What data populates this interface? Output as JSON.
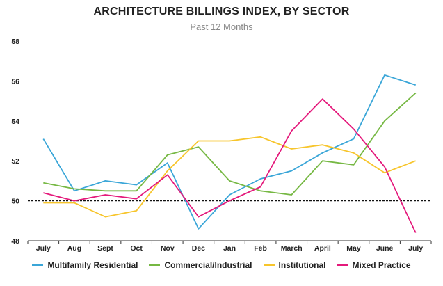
{
  "chart_data": {
    "type": "line",
    "title": "ARCHITECTURE BILLINGS INDEX, BY SECTOR",
    "subtitle": "Past 12 Months",
    "categories": [
      "July",
      "Aug",
      "Sept",
      "Oct",
      "Nov",
      "Dec",
      "Jan",
      "Feb",
      "March",
      "April",
      "May",
      "June",
      "July"
    ],
    "ylim": [
      48,
      58
    ],
    "yticks": [
      48,
      50,
      52,
      54,
      56,
      58
    ],
    "reference_line": 50,
    "grid": false,
    "legend_position": "bottom",
    "series": [
      {
        "name": "Multifamily Residential",
        "color": "#3aa6d8",
        "values": [
          53.1,
          50.5,
          51.0,
          50.8,
          51.9,
          48.6,
          50.3,
          51.1,
          51.5,
          52.4,
          53.1,
          56.3,
          55.8
        ]
      },
      {
        "name": "Commercial/Industrial",
        "color": "#76b843",
        "values": [
          50.9,
          50.6,
          50.5,
          50.5,
          52.3,
          52.7,
          51.0,
          50.5,
          50.3,
          52.0,
          51.8,
          54.0,
          55.4
        ]
      },
      {
        "name": "Institutional",
        "color": "#f7c52b",
        "values": [
          49.9,
          49.9,
          49.2,
          49.5,
          51.5,
          53.0,
          53.0,
          53.2,
          52.6,
          52.8,
          52.4,
          51.4,
          52.0
        ]
      },
      {
        "name": "Mixed Practice",
        "color": "#e4197b",
        "values": [
          50.4,
          50.0,
          50.3,
          50.1,
          51.3,
          49.2,
          50.0,
          50.7,
          53.5,
          55.1,
          53.6,
          51.7,
          48.4
        ]
      }
    ]
  }
}
